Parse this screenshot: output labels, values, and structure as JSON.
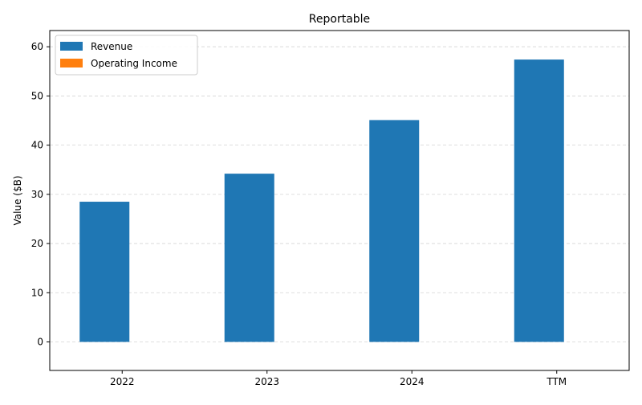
{
  "chart_data": {
    "type": "bar",
    "title": "Reportable",
    "xlabel": "",
    "ylabel": "Value ($B)",
    "categories": [
      "2022",
      "2023",
      "2024",
      "TTM"
    ],
    "series": [
      {
        "name": "Revenue",
        "values": [
          28.5,
          34.2,
          45.1,
          57.4
        ],
        "color": "#1f77b4"
      },
      {
        "name": "Operating Income",
        "values": [
          0,
          0,
          0,
          0
        ],
        "color": "#ff7f0e"
      }
    ],
    "ylim": [
      -5.8,
      63.3
    ],
    "yticks": [
      0,
      10,
      20,
      30,
      40,
      50,
      60
    ],
    "grid": true,
    "legend_position": "top-left"
  }
}
